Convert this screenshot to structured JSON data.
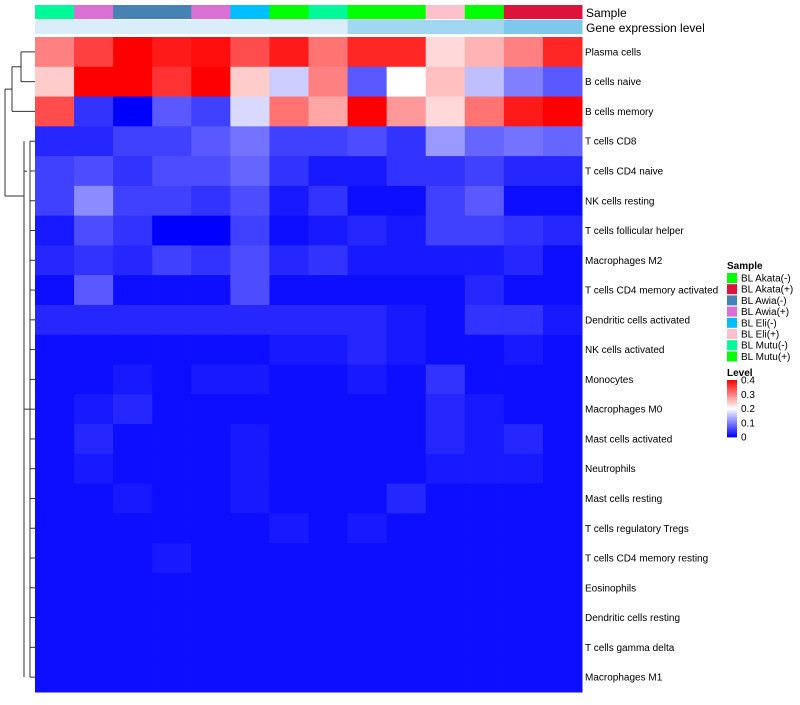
{
  "chart_data": {
    "type": "heatmap",
    "annotation_rows": [
      "Sample",
      "Gene expression level"
    ],
    "columns": [
      {
        "sample": "BL Mutu(-)"
      },
      {
        "sample": "BL Awia(+)"
      },
      {
        "sample": "BL Awia(-)"
      },
      {
        "sample": "BL Awia(-)"
      },
      {
        "sample": "BL Awia(+)"
      },
      {
        "sample": "BL Eli(-)"
      },
      {
        "sample": "BL Mutu(+)"
      },
      {
        "sample": "BL Mutu(-)"
      },
      {
        "sample": "BL Mutu(+)"
      },
      {
        "sample": "BL Mutu(+)"
      },
      {
        "sample": "BL Eli(+)"
      },
      {
        "sample": "BL Mutu(+)"
      },
      {
        "sample": "BL Akata(+)"
      },
      {
        "sample": "BL Akata(+)"
      }
    ],
    "expression_level": [
      0.05,
      0.05,
      0.05,
      0.05,
      0.05,
      0.05,
      0.05,
      0.05,
      0.5,
      0.5,
      0.5,
      0.5,
      0.8,
      0.8
    ],
    "rows": [
      "Plasma cells",
      "B cells naive",
      "B cells memory",
      "T cells CD8",
      "T cells CD4 naive",
      "NK cells resting",
      "T cells follicular helper",
      "Macrophages M2",
      "T cells CD4 memory activated",
      "Dendritic cells activated",
      "NK cells activated",
      "Monocytes",
      "Macrophages M0",
      "Mast cells activated",
      "Neutrophils",
      "Mast cells resting",
      "T cells regulatory  Tregs",
      "T cells CD4 memory resting",
      "Eosinophils",
      "Dendritic cells resting",
      "T cells gamma delta",
      "Macrophages M1"
    ],
    "values": [
      [
        0.3,
        0.35,
        0.4,
        0.38,
        0.39,
        0.34,
        0.38,
        0.31,
        0.37,
        0.37,
        0.23,
        0.26,
        0.3,
        0.37
      ],
      [
        0.24,
        0.4,
        0.41,
        0.36,
        0.41,
        0.24,
        0.16,
        0.3,
        0.07,
        0.2,
        0.25,
        0.15,
        0.1,
        0.07
      ],
      [
        0.34,
        0.04,
        0.0,
        0.07,
        0.05,
        0.17,
        0.31,
        0.27,
        0.41,
        0.28,
        0.23,
        0.31,
        0.38,
        0.4
      ],
      [
        0.03,
        0.03,
        0.05,
        0.05,
        0.07,
        0.09,
        0.05,
        0.05,
        0.06,
        0.04,
        0.12,
        0.08,
        0.09,
        0.08
      ],
      [
        0.05,
        0.06,
        0.04,
        0.06,
        0.06,
        0.08,
        0.04,
        0.02,
        0.02,
        0.04,
        0.04,
        0.05,
        0.03,
        0.03
      ],
      [
        0.05,
        0.11,
        0.05,
        0.05,
        0.04,
        0.06,
        0.02,
        0.04,
        0.01,
        0.01,
        0.05,
        0.07,
        0.01,
        0.01
      ],
      [
        0.02,
        0.06,
        0.04,
        0.0,
        0.0,
        0.05,
        0.01,
        0.02,
        0.03,
        0.02,
        0.05,
        0.05,
        0.04,
        0.03
      ],
      [
        0.03,
        0.04,
        0.03,
        0.05,
        0.04,
        0.06,
        0.03,
        0.04,
        0.02,
        0.02,
        0.02,
        0.02,
        0.03,
        0.01
      ],
      [
        0.01,
        0.07,
        0.01,
        0.01,
        0.01,
        0.06,
        0.01,
        0.01,
        0.01,
        0.01,
        0.01,
        0.03,
        0.01,
        0.01
      ],
      [
        0.03,
        0.03,
        0.03,
        0.03,
        0.03,
        0.03,
        0.03,
        0.03,
        0.03,
        0.02,
        0.01,
        0.04,
        0.04,
        0.02
      ],
      [
        0.01,
        0.01,
        0.01,
        0.01,
        0.01,
        0.01,
        0.02,
        0.02,
        0.03,
        0.02,
        0.01,
        0.01,
        0.02,
        0.01
      ],
      [
        0.01,
        0.01,
        0.02,
        0.01,
        0.02,
        0.02,
        0.01,
        0.01,
        0.02,
        0.01,
        0.04,
        0.01,
        0.01,
        0.01
      ],
      [
        0.01,
        0.02,
        0.03,
        0.01,
        0.01,
        0.01,
        0.01,
        0.01,
        0.01,
        0.01,
        0.03,
        0.02,
        0.01,
        0.01
      ],
      [
        0.01,
        0.03,
        0.01,
        0.01,
        0.01,
        0.02,
        0.01,
        0.01,
        0.01,
        0.01,
        0.03,
        0.02,
        0.03,
        0.01
      ],
      [
        0.01,
        0.02,
        0.01,
        0.01,
        0.01,
        0.02,
        0.01,
        0.01,
        0.01,
        0.01,
        0.02,
        0.02,
        0.02,
        0.01
      ],
      [
        0.01,
        0.01,
        0.02,
        0.01,
        0.01,
        0.02,
        0.01,
        0.01,
        0.01,
        0.03,
        0.01,
        0.01,
        0.01,
        0.01
      ],
      [
        0.01,
        0.01,
        0.01,
        0.01,
        0.01,
        0.01,
        0.02,
        0.01,
        0.02,
        0.01,
        0.01,
        0.01,
        0.01,
        0.01
      ],
      [
        0.01,
        0.01,
        0.01,
        0.02,
        0.01,
        0.01,
        0.01,
        0.01,
        0.01,
        0.01,
        0.01,
        0.01,
        0.01,
        0.01
      ],
      [
        0.01,
        0.01,
        0.01,
        0.01,
        0.01,
        0.01,
        0.01,
        0.01,
        0.01,
        0.01,
        0.01,
        0.01,
        0.01,
        0.01
      ],
      [
        0.01,
        0.01,
        0.01,
        0.01,
        0.01,
        0.01,
        0.01,
        0.01,
        0.01,
        0.01,
        0.01,
        0.01,
        0.01,
        0.01
      ],
      [
        0.01,
        0.01,
        0.01,
        0.01,
        0.01,
        0.01,
        0.01,
        0.01,
        0.01,
        0.01,
        0.01,
        0.01,
        0.01,
        0.01
      ],
      [
        0.01,
        0.01,
        0.01,
        0.01,
        0.01,
        0.01,
        0.01,
        0.01,
        0.01,
        0.01,
        0.01,
        0.01,
        0.01,
        0.01
      ]
    ],
    "color_scale": {
      "min": 0,
      "mid": 0.2,
      "max": 0.4,
      "low": "#0000ff",
      "midColor": "#ffffff",
      "high": "#ff0000"
    },
    "legend_sample": {
      "title": "Sample",
      "items": [
        {
          "label": "BL Akata(-)",
          "color": "#00ff00"
        },
        {
          "label": "BL Akata(+)",
          "color": "#dc143c"
        },
        {
          "label": "BL Awia(-)",
          "color": "#4682b4"
        },
        {
          "label": "BL Awia(+)",
          "color": "#da70d6"
        },
        {
          "label": "BL Eli(-)",
          "color": "#00bfff"
        },
        {
          "label": "BL Eli(+)",
          "color": "#ffc0cb"
        },
        {
          "label": "BL Mutu(-)",
          "color": "#00fa9a"
        },
        {
          "label": "BL Mutu(+)",
          "color": "#00ff00"
        }
      ]
    },
    "legend_level": {
      "title": "Level",
      "ticks": [
        0.4,
        0.3,
        0.2,
        0.1,
        0
      ]
    },
    "legend_placement": "right"
  }
}
